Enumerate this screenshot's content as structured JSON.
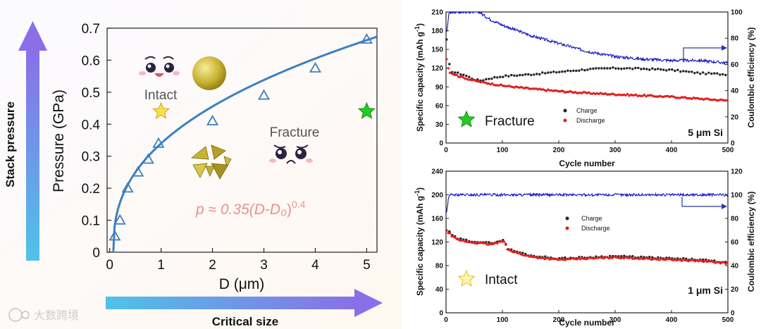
{
  "side_labels": {
    "stack_pressure": "Stack pressure",
    "critical_size": "Critical size"
  },
  "watermark": "大数跨境",
  "colors": {
    "fit": "#3d7fc0",
    "marker": "#3d7fc0",
    "charge": "#222222",
    "discharge": "#e02020",
    "ce": "#1010c0",
    "yellow_star": "#f5e050",
    "green_star": "#22cc22",
    "formula": "#e89090"
  },
  "chart_data": [
    {
      "type": "scatter",
      "id": "pressure-vs-size",
      "xlabel": "D (μm)",
      "ylabel": "Pressure (GPa)",
      "xlim": [
        -0.05,
        5.2
      ],
      "ylim": [
        0,
        0.7
      ],
      "xticks": [
        "0",
        "1",
        "2",
        "3",
        "4",
        "5"
      ],
      "yticks": [
        "0",
        "0.1",
        "0.2",
        "0.3",
        "0.4",
        "0.5",
        "0.6",
        "0.7"
      ],
      "points": {
        "x": [
          0.1,
          0.2,
          0.35,
          0.55,
          0.75,
          0.95,
          2.0,
          3.0,
          4.0,
          5.0
        ],
        "y": [
          0.05,
          0.1,
          0.2,
          0.25,
          0.29,
          0.34,
          0.41,
          0.49,
          0.575,
          0.665
        ]
      },
      "fit": {
        "coef": 0.35,
        "d0": 0.07,
        "exp": 0.4
      },
      "formula_prefix": "p ≈ 0.35(",
      "formula_var": "D-D₀",
      "formula_suffix": ")",
      "formula_exp": "0.4",
      "annotations": {
        "intact": "Intact",
        "fracture": "Fracture"
      },
      "stars": [
        {
          "label": "intact",
          "x": 1.0,
          "y": 0.44
        },
        {
          "label": "fracture",
          "x": 5.0,
          "y": 0.44
        }
      ]
    },
    {
      "type": "line",
      "id": "cycling-5um",
      "tag": "5 μm Si",
      "legend_title": "Fracture",
      "xlabel": "Cycle number",
      "ylabel_left": "Specific capacity (mAh g",
      "ylabel_left_sup": "-1",
      "ylabel_left_close": ")",
      "ylabel_right": "Coulombic efficiency (%)",
      "xlim": [
        0,
        500
      ],
      "ylim_left": [
        0,
        210
      ],
      "ylim_right": [
        0,
        100
      ],
      "xticks": [
        "0",
        "100",
        "200",
        "300",
        "400",
        "500"
      ],
      "yticks_left": [
        "0",
        "30",
        "60",
        "90",
        "120",
        "150",
        "180",
        "210"
      ],
      "yticks_right": [
        "0",
        "20",
        "40",
        "60",
        "80",
        "100"
      ],
      "series": [
        {
          "name": "Charge",
          "axis": "left",
          "x": [
            1,
            5,
            10,
            20,
            30,
            50,
            60,
            80,
            100,
            150,
            200,
            250,
            300,
            350,
            400,
            450,
            500
          ],
          "y": [
            165,
            128,
            115,
            112,
            110,
            102,
            100,
            104,
            107,
            110,
            114,
            118,
            120,
            119,
            117,
            112,
            110
          ]
        },
        {
          "name": "Discharge",
          "axis": "left",
          "x": [
            1,
            5,
            10,
            20,
            30,
            50,
            60,
            80,
            100,
            150,
            200,
            250,
            300,
            350,
            400,
            450,
            500
          ],
          "y": [
            135,
            115,
            112,
            108,
            105,
            100,
            98,
            95,
            92,
            87,
            83,
            80,
            78,
            76,
            74,
            71,
            68
          ]
        },
        {
          "name": "Coulombic efficiency",
          "axis": "right",
          "x": [
            1,
            5,
            10,
            30,
            60,
            65,
            80,
            100,
            150,
            200,
            250,
            300,
            350,
            400,
            450,
            500
          ],
          "y": [
            85,
            98,
            100,
            100,
            100,
            98,
            94,
            90,
            82,
            76,
            70,
            66,
            64,
            63,
            63,
            61
          ]
        }
      ]
    },
    {
      "type": "line",
      "id": "cycling-1um",
      "tag": "1 μm Si",
      "legend_title": "Intact",
      "xlabel": "Cycle number",
      "ylabel_left": "Specific capacity (mAh g",
      "ylabel_left_sup": "-1",
      "ylabel_left_close": ")",
      "ylabel_right": "Coulombic efficiency (%)",
      "xlim": [
        0,
        500
      ],
      "ylim_left": [
        0,
        240
      ],
      "ylim_right": [
        0,
        120
      ],
      "xticks": [
        "0",
        "100",
        "200",
        "300",
        "400",
        "500"
      ],
      "yticks_left": [
        "0",
        "40",
        "80",
        "120",
        "160",
        "200",
        "240"
      ],
      "yticks_right": [
        "0",
        "20",
        "40",
        "60",
        "80",
        "100",
        "120"
      ],
      "series": [
        {
          "name": "Charge",
          "axis": "left",
          "x": [
            1,
            5,
            10,
            20,
            40,
            60,
            80,
            100,
            105,
            110,
            150,
            200,
            250,
            300,
            350,
            400,
            450,
            500
          ],
          "y": [
            140,
            138,
            132,
            126,
            122,
            120,
            118,
            123,
            120,
            108,
            97,
            92,
            94,
            96,
            94,
            92,
            90,
            85
          ]
        },
        {
          "name": "Discharge",
          "axis": "left",
          "x": [
            1,
            5,
            10,
            20,
            40,
            60,
            80,
            100,
            105,
            110,
            150,
            200,
            250,
            300,
            350,
            400,
            450,
            500
          ],
          "y": [
            138,
            136,
            130,
            124,
            120,
            118,
            116,
            121,
            118,
            106,
            95,
            90,
            92,
            94,
            92,
            90,
            88,
            84
          ]
        },
        {
          "name": "Coulombic efficiency",
          "axis": "right",
          "x": [
            1,
            5,
            10,
            50,
            100,
            150,
            200,
            250,
            300,
            350,
            400,
            450,
            500
          ],
          "y": [
            85,
            99,
            100,
            100,
            100,
            100,
            100,
            100,
            100,
            100,
            100,
            100,
            100
          ]
        }
      ]
    }
  ]
}
